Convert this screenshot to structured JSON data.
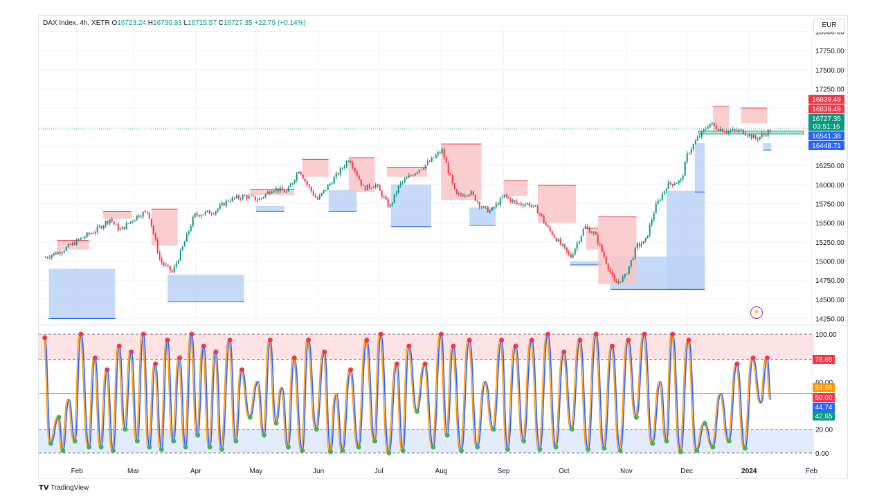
{
  "header": {
    "symbol": "DAX Index, 4h, XETR",
    "open_label": "O",
    "open": "16723.24",
    "high_label": "H",
    "high": "16730.93",
    "low_label": "L",
    "low": "16715.57",
    "close_label": "C",
    "close": "16727.35",
    "change": "+22.79 (+0.14%)"
  },
  "currency": "EUR",
  "branding": {
    "logo": "TV",
    "name": "TradingView"
  },
  "colors": {
    "up": "#089981",
    "down": "#f23645",
    "bullish_zone": "#bbd2f7",
    "bearish_zone": "#f9c4c7",
    "stoch_k": "#2962ff",
    "stoch_d": "#ff9800",
    "grid": "#f0f3fa"
  },
  "price_tags": [
    {
      "text": "16839.49",
      "color": "#f23645"
    },
    {
      "text": "16839.49",
      "color": "#f23645"
    },
    {
      "text": "16727.35",
      "color": "#089981"
    },
    {
      "text": "03:51:16",
      "color": "#089981"
    },
    {
      "text": "16541.38",
      "color": "#2962ff"
    },
    {
      "text": "16448.71",
      "color": "#2962ff"
    }
  ],
  "osc_tags": [
    {
      "text": "78.65",
      "color": "#f23645"
    },
    {
      "text": "54.88",
      "color": "#ff9800"
    },
    {
      "text": "50.00",
      "color": "#f23645"
    },
    {
      "text": "44.74",
      "color": "#2962ff"
    },
    {
      "text": "42.65",
      "color": "#089981"
    }
  ],
  "chart_data": [
    {
      "type": "candlestick",
      "title": "DAX Index, 4h, XETR",
      "y_ticks": [
        14250,
        14500,
        14750,
        15000,
        15250,
        15500,
        15750,
        16000,
        16250,
        16500,
        16750,
        17000,
        17250,
        17500,
        17750,
        18000
      ],
      "y_tick_labels": [
        "14250.00",
        "14500.00",
        "14750.00",
        "15000.00",
        "15250.00",
        "15500.00",
        "15750.00",
        "16000.00",
        "16250.00",
        "16500.00",
        "16750.00",
        "17000.00",
        "17250.00",
        "17500.00",
        "17750.00",
        "18000.00"
      ],
      "ylim": [
        14200,
        18050
      ],
      "x_tick_labels": [
        "Feb",
        "Mar",
        "Apr",
        "May",
        "Jun",
        "Jul",
        "Aug",
        "Sep",
        "Oct",
        "Nov",
        "Dec",
        "2024",
        "Feb"
      ],
      "x_tick_dates": [
        "2023-02-01",
        "2023-03-01",
        "2023-04-01",
        "2023-05-01",
        "2023-06-01",
        "2023-07-01",
        "2023-08-01",
        "2023-09-01",
        "2023-10-01",
        "2023-11-01",
        "2023-12-01",
        "2024-01-01",
        "2024-02-01"
      ],
      "close_path": [
        [
          "2023-01-16",
          15050
        ],
        [
          "2023-01-25",
          15150
        ],
        [
          "2023-02-03",
          15300
        ],
        [
          "2023-02-10",
          15400
        ],
        [
          "2023-02-17",
          15550
        ],
        [
          "2023-02-22",
          15400
        ],
        [
          "2023-03-03",
          15600
        ],
        [
          "2023-03-08",
          15650
        ],
        [
          "2023-03-14",
          15000
        ],
        [
          "2023-03-20",
          14850
        ],
        [
          "2023-03-24",
          15100
        ],
        [
          "2023-03-31",
          15600
        ],
        [
          "2023-04-10",
          15650
        ],
        [
          "2023-04-17",
          15800
        ],
        [
          "2023-04-25",
          15850
        ],
        [
          "2023-05-02",
          15800
        ],
        [
          "2023-05-09",
          15950
        ],
        [
          "2023-05-16",
          15900
        ],
        [
          "2023-05-22",
          16200
        ],
        [
          "2023-05-26",
          16000
        ],
        [
          "2023-05-31",
          15800
        ],
        [
          "2023-06-06",
          16000
        ],
        [
          "2023-06-12",
          16200
        ],
        [
          "2023-06-16",
          16350
        ],
        [
          "2023-06-23",
          15950
        ],
        [
          "2023-06-29",
          16000
        ],
        [
          "2023-07-06",
          15700
        ],
        [
          "2023-07-11",
          16000
        ],
        [
          "2023-07-18",
          16150
        ],
        [
          "2023-07-26",
          16300
        ],
        [
          "2023-08-01",
          16450
        ],
        [
          "2023-08-08",
          15850
        ],
        [
          "2023-08-15",
          15900
        ],
        [
          "2023-08-21",
          15700
        ],
        [
          "2023-08-25",
          15650
        ],
        [
          "2023-09-01",
          15850
        ],
        [
          "2023-09-07",
          15750
        ],
        [
          "2023-09-13",
          15750
        ],
        [
          "2023-09-18",
          15650
        ],
        [
          "2023-09-22",
          15450
        ],
        [
          "2023-09-28",
          15250
        ],
        [
          "2023-10-04",
          15050
        ],
        [
          "2023-10-11",
          15450
        ],
        [
          "2023-10-16",
          15350
        ],
        [
          "2023-10-20",
          15100
        ],
        [
          "2023-10-26",
          14700
        ],
        [
          "2023-10-31",
          14800
        ],
        [
          "2023-11-06",
          15200
        ],
        [
          "2023-11-10",
          15250
        ],
        [
          "2023-11-15",
          15700
        ],
        [
          "2023-11-21",
          16000
        ],
        [
          "2023-11-28",
          16050
        ],
        [
          "2023-12-01",
          16400
        ],
        [
          "2023-12-06",
          16600
        ],
        [
          "2023-12-12",
          16800
        ],
        [
          "2023-12-15",
          16750
        ],
        [
          "2023-12-20",
          16700
        ],
        [
          "2023-12-28",
          16700
        ],
        [
          "2024-01-04",
          16600
        ],
        [
          "2024-01-08",
          16650
        ],
        [
          "2024-01-12",
          16727
        ]
      ],
      "demand_zones": [
        {
          "start": "2023-01-18",
          "end": "2023-02-20",
          "low": 14250,
          "high": 14900
        },
        {
          "start": "2023-03-18",
          "end": "2023-04-25",
          "low": 14470,
          "high": 14820
        },
        {
          "start": "2023-05-01",
          "end": "2023-05-15",
          "low": 15650,
          "high": 15720
        },
        {
          "start": "2023-06-06",
          "end": "2023-06-20",
          "low": 15650,
          "high": 15930
        },
        {
          "start": "2023-07-07",
          "end": "2023-07-27",
          "low": 15450,
          "high": 16000
        },
        {
          "start": "2023-08-15",
          "end": "2023-08-28",
          "low": 15470,
          "high": 15700
        },
        {
          "start": "2023-10-04",
          "end": "2023-10-20",
          "low": 14950,
          "high": 15000
        },
        {
          "start": "2023-10-24",
          "end": "2023-12-10",
          "low": 14630,
          "high": 15060
        },
        {
          "start": "2023-11-21",
          "end": "2023-12-10",
          "low": 14630,
          "high": 15920
        },
        {
          "start": "2023-12-05",
          "end": "2023-12-10",
          "low": 15900,
          "high": 16540
        },
        {
          "start": "2024-01-08",
          "end": "2024-01-12",
          "low": 16450,
          "high": 16540
        }
      ],
      "supply_zones": [
        {
          "start": "2023-01-22",
          "end": "2023-02-07",
          "low": 15150,
          "high": 15270
        },
        {
          "start": "2023-02-14",
          "end": "2023-02-28",
          "low": 15550,
          "high": 15650
        },
        {
          "start": "2023-03-10",
          "end": "2023-03-23",
          "low": 15200,
          "high": 15680
        },
        {
          "start": "2023-04-28",
          "end": "2023-05-20",
          "low": 15860,
          "high": 15940
        },
        {
          "start": "2023-05-24",
          "end": "2023-06-06",
          "low": 16100,
          "high": 16330
        },
        {
          "start": "2023-06-16",
          "end": "2023-06-29",
          "low": 15900,
          "high": 16350
        },
        {
          "start": "2023-07-05",
          "end": "2023-07-25",
          "low": 16100,
          "high": 16220
        },
        {
          "start": "2023-08-01",
          "end": "2023-08-21",
          "low": 15800,
          "high": 16530
        },
        {
          "start": "2023-09-01",
          "end": "2023-09-13",
          "low": 15850,
          "high": 16050
        },
        {
          "start": "2023-09-18",
          "end": "2023-10-07",
          "low": 15500,
          "high": 15990
        },
        {
          "start": "2023-10-12",
          "end": "2023-10-18",
          "low": 15150,
          "high": 15430
        },
        {
          "start": "2023-10-18",
          "end": "2023-11-06",
          "low": 14700,
          "high": 15580
        },
        {
          "start": "2023-12-14",
          "end": "2023-12-22",
          "low": 16700,
          "high": 17020
        },
        {
          "start": "2023-12-28",
          "end": "2024-01-10",
          "low": 16800,
          "high": 17000
        }
      ],
      "green_box": {
        "start": "2023-12-07",
        "end": "2024-01-28",
        "low": 16660,
        "high": 16700
      },
      "last_price": 16727.35,
      "tags": [
        16839.49,
        16839.49,
        16727.35,
        16541.38,
        16448.71
      ]
    },
    {
      "type": "line",
      "title": "Stochastic",
      "y_ticks": [
        0,
        20,
        40,
        60,
        80,
        100
      ],
      "y_tick_labels": [
        "0.00",
        "20.00",
        "",
        "60.00",
        "",
        "100.00"
      ],
      "ylim": [
        -3,
        103
      ],
      "overbought": 78.65,
      "oversold": 20,
      "midline": 50,
      "series": [
        {
          "name": "",
          "color": "#2962ff",
          "last": 44.74
        },
        {
          "name": "",
          "color": "#ff9800",
          "last": 54.88
        }
      ],
      "swing_points": [
        [
          "2023-01-16",
          97
        ],
        [
          "2023-01-19",
          8
        ],
        [
          "2023-01-23",
          30
        ],
        [
          "2023-01-25",
          2
        ],
        [
          "2023-01-28",
          45
        ],
        [
          "2023-01-31",
          10
        ],
        [
          "2023-02-03",
          100
        ],
        [
          "2023-02-07",
          5
        ],
        [
          "2023-02-10",
          80
        ],
        [
          "2023-02-13",
          5
        ],
        [
          "2023-02-16",
          70
        ],
        [
          "2023-02-19",
          2
        ],
        [
          "2023-02-22",
          90
        ],
        [
          "2023-02-25",
          20
        ],
        [
          "2023-02-28",
          85
        ],
        [
          "2023-03-03",
          10
        ],
        [
          "2023-03-06",
          100
        ],
        [
          "2023-03-09",
          5
        ],
        [
          "2023-03-12",
          75
        ],
        [
          "2023-03-15",
          3
        ],
        [
          "2023-03-18",
          95
        ],
        [
          "2023-03-21",
          10
        ],
        [
          "2023-03-24",
          80
        ],
        [
          "2023-03-27",
          5
        ],
        [
          "2023-03-30",
          100
        ],
        [
          "2023-04-02",
          15
        ],
        [
          "2023-04-05",
          90
        ],
        [
          "2023-04-08",
          5
        ],
        [
          "2023-04-11",
          85
        ],
        [
          "2023-04-14",
          3
        ],
        [
          "2023-04-18",
          95
        ],
        [
          "2023-04-21",
          10
        ],
        [
          "2023-04-24",
          70
        ],
        [
          "2023-04-28",
          30
        ],
        [
          "2023-05-02",
          60
        ],
        [
          "2023-05-05",
          15
        ],
        [
          "2023-05-08",
          95
        ],
        [
          "2023-05-11",
          25
        ],
        [
          "2023-05-14",
          55
        ],
        [
          "2023-05-17",
          5
        ],
        [
          "2023-05-20",
          80
        ],
        [
          "2023-05-24",
          2
        ],
        [
          "2023-05-27",
          95
        ],
        [
          "2023-05-31",
          20
        ],
        [
          "2023-06-04",
          85
        ],
        [
          "2023-06-07",
          1
        ],
        [
          "2023-06-10",
          50
        ],
        [
          "2023-06-13",
          2
        ],
        [
          "2023-06-17",
          70
        ],
        [
          "2023-06-21",
          5
        ],
        [
          "2023-06-25",
          95
        ],
        [
          "2023-06-29",
          10
        ],
        [
          "2023-07-02",
          100
        ],
        [
          "2023-07-06",
          0
        ],
        [
          "2023-07-10",
          75
        ],
        [
          "2023-07-13",
          2
        ],
        [
          "2023-07-16",
          90
        ],
        [
          "2023-07-20",
          35
        ],
        [
          "2023-07-24",
          75
        ],
        [
          "2023-07-28",
          5
        ],
        [
          "2023-08-01",
          100
        ],
        [
          "2023-08-04",
          15
        ],
        [
          "2023-08-07",
          90
        ],
        [
          "2023-08-11",
          2
        ],
        [
          "2023-08-15",
          95
        ],
        [
          "2023-08-19",
          5
        ],
        [
          "2023-08-23",
          60
        ],
        [
          "2023-08-27",
          20
        ],
        [
          "2023-08-31",
          95
        ],
        [
          "2023-09-03",
          3
        ],
        [
          "2023-09-07",
          90
        ],
        [
          "2023-09-11",
          10
        ],
        [
          "2023-09-15",
          95
        ],
        [
          "2023-09-19",
          3
        ],
        [
          "2023-09-23",
          100
        ],
        [
          "2023-09-27",
          5
        ],
        [
          "2023-10-01",
          85
        ],
        [
          "2023-10-05",
          20
        ],
        [
          "2023-10-09",
          95
        ],
        [
          "2023-10-13",
          3
        ],
        [
          "2023-10-17",
          100
        ],
        [
          "2023-10-21",
          4
        ],
        [
          "2023-10-25",
          90
        ],
        [
          "2023-10-29",
          2
        ],
        [
          "2023-11-02",
          95
        ],
        [
          "2023-11-06",
          30
        ],
        [
          "2023-11-10",
          100
        ],
        [
          "2023-11-14",
          8
        ],
        [
          "2023-11-18",
          60
        ],
        [
          "2023-11-21",
          10
        ],
        [
          "2023-11-24",
          100
        ],
        [
          "2023-11-28",
          1
        ],
        [
          "2023-12-02",
          95
        ],
        [
          "2023-12-06",
          2
        ],
        [
          "2023-12-10",
          25
        ],
        [
          "2023-12-14",
          5
        ],
        [
          "2023-12-18",
          50
        ],
        [
          "2023-12-22",
          10
        ],
        [
          "2023-12-26",
          75
        ],
        [
          "2023-12-30",
          4
        ],
        [
          "2024-01-03",
          80
        ],
        [
          "2024-01-07",
          42
        ],
        [
          "2024-01-10",
          80
        ],
        [
          "2024-01-12",
          45
        ]
      ]
    }
  ]
}
